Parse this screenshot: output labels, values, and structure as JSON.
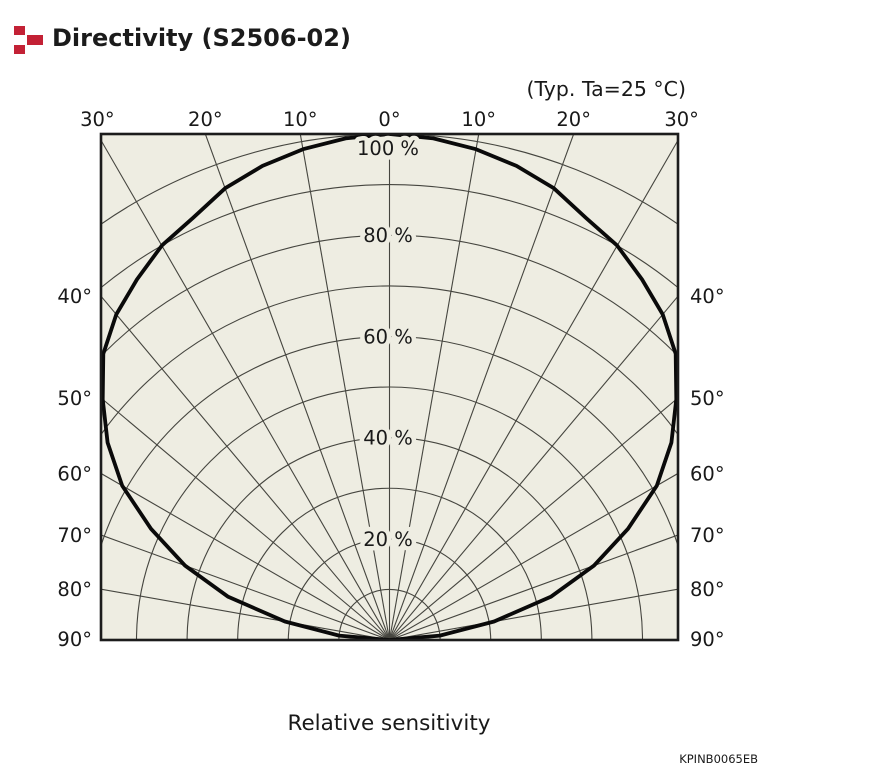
{
  "header": {
    "title": "Directivity (S2506-02)"
  },
  "accent_color": "#c32135",
  "chart_bg_color": "#eeede2",
  "chart_data": {
    "type": "polar-directivity",
    "title": "Directivity (S2506-02)",
    "condition": "(Typ. Ta=25 °C)",
    "xlabel": "Relative sensitivity",
    "footnote": "KPINB0065EB",
    "legend": "none",
    "grid": {
      "angle_step_deg": 10,
      "angle_max_deg": 90,
      "radial_step_pct": 10,
      "radial_max_pct": 100
    },
    "angle_ticks_top": {
      "labels": [
        "30°",
        "20°",
        "10°",
        "0°",
        "10°",
        "20°",
        "30°"
      ],
      "degrees": [
        -30,
        -20,
        -10,
        0,
        10,
        20,
        30
      ]
    },
    "angle_ticks_sides": {
      "labels": [
        "40°",
        "50°",
        "60°",
        "70°",
        "80°",
        "90°"
      ],
      "degrees": [
        40,
        50,
        60,
        70,
        80,
        90
      ]
    },
    "radial_ticks": {
      "labels": [
        "20 %",
        "40 %",
        "60 %",
        "80 %",
        "100 %"
      ],
      "values_pct": [
        20,
        40,
        60,
        80,
        100
      ]
    },
    "series": [
      {
        "name": "Relative sensitivity vs angle",
        "angles_deg": [
          -90,
          -85,
          -80,
          -75,
          -70,
          -65,
          -60,
          -55,
          -50,
          -45,
          -40,
          -35,
          -30,
          -25,
          -20,
          -15,
          -10,
          -5,
          0,
          5,
          10,
          15,
          20,
          25,
          30,
          35,
          40,
          45,
          50,
          55,
          60,
          65,
          70,
          75,
          80,
          85,
          90
        ],
        "values_pct": [
          0,
          10,
          21,
          33,
          43,
          52,
          61,
          68,
          74,
          80,
          84,
          87,
          90,
          92,
          95,
          97,
          98.5,
          99.5,
          100,
          99.5,
          98.5,
          97,
          95,
          92,
          90,
          87,
          84,
          80,
          74,
          68,
          61,
          52,
          43,
          33,
          21,
          10,
          0
        ]
      }
    ]
  }
}
